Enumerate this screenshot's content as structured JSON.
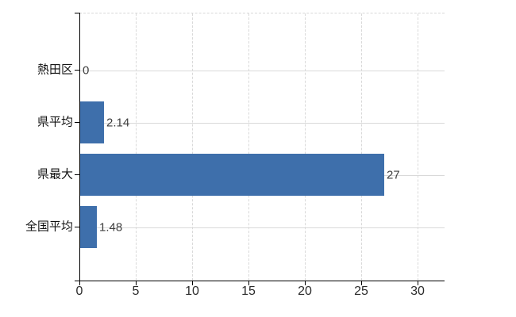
{
  "chart_data": {
    "type": "bar",
    "orientation": "horizontal",
    "title": "",
    "xlabel": "",
    "ylabel": "",
    "categories": [
      "熱田区",
      "県平均",
      "県最大",
      "全国平均"
    ],
    "values": [
      0,
      2.14,
      27,
      1.48
    ],
    "value_labels": [
      "0",
      "2.14",
      "27",
      "1.48"
    ],
    "xlim": [
      0,
      32.4
    ],
    "xticks": [
      0,
      5,
      10,
      15,
      20,
      25,
      30
    ],
    "xtick_labels": [
      "0",
      "5",
      "10",
      "15",
      "20",
      "25",
      "30"
    ],
    "grid": true,
    "legend": false,
    "colors": {
      "bar": "#3e6fab",
      "gridline": "#d9d9d9",
      "axis": "#000000",
      "category_label": "#111111",
      "tick_label": "#2b2b2b",
      "value_label": "#3f3f3f",
      "background": "#ffffff"
    }
  }
}
